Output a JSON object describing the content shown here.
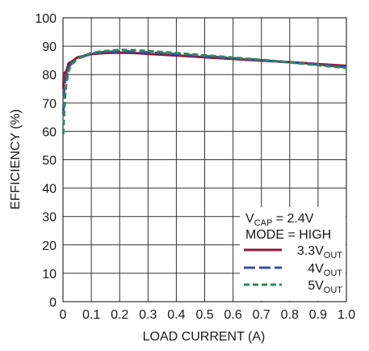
{
  "chart_data": {
    "type": "line",
    "xlabel": "LOAD CURRENT (A)",
    "ylabel": "EFFICIENCY (%)",
    "xlim": [
      0,
      1.0
    ],
    "ylim": [
      0,
      100
    ],
    "x_ticks": [
      "0",
      "0.1",
      "0.2",
      "0.3",
      "0.4",
      "0.5",
      "0.6",
      "0.7",
      "0.8",
      "0.9",
      "1.0"
    ],
    "y_ticks": [
      "0",
      "10",
      "20",
      "30",
      "40",
      "50",
      "60",
      "70",
      "80",
      "90",
      "100"
    ],
    "grid": true,
    "legend": {
      "placement": "bottom-right",
      "conditions": [
        {
          "main": "V",
          "sub": "CAP",
          "rest": " = 2.4V"
        },
        {
          "main": "MODE = HIGH",
          "sub": "",
          "rest": ""
        }
      ]
    },
    "series": [
      {
        "name_main": "3.3V",
        "name_sub": "OUT",
        "color": "#8b1a3a",
        "style": "solid",
        "x": [
          0.001,
          0.003,
          0.005,
          0.008,
          0.012,
          0.02,
          0.03,
          0.05,
          0.07,
          0.1,
          0.15,
          0.2,
          0.25,
          0.3,
          0.4,
          0.5,
          0.6,
          0.7,
          0.8,
          0.9,
          1.0
        ],
        "y": [
          75,
          80,
          80.5,
          80.8,
          81,
          84,
          84.5,
          86,
          86.5,
          87.2,
          87.6,
          87.7,
          87.6,
          87.3,
          86.7,
          86.1,
          85.5,
          84.9,
          84.4,
          83.7,
          83.1
        ]
      },
      {
        "name_main": "4V",
        "name_sub": "OUT",
        "color": "#3b4ea0",
        "style": "dashed",
        "x": [
          0.001,
          0.003,
          0.005,
          0.008,
          0.012,
          0.02,
          0.03,
          0.05,
          0.07,
          0.1,
          0.15,
          0.2,
          0.25,
          0.3,
          0.4,
          0.5,
          0.6,
          0.7,
          0.8,
          0.9,
          1.0
        ],
        "y": [
          66,
          72,
          76,
          78,
          79.5,
          82.5,
          84,
          85.5,
          86.3,
          87.4,
          88,
          88.2,
          88.1,
          87.8,
          87.2,
          86.5,
          85.8,
          85.1,
          84.3,
          83.5,
          82.6
        ]
      },
      {
        "name_main": "5V",
        "name_sub": "OUT",
        "color": "#2e8a57",
        "style": "dashed",
        "x": [
          0.001,
          0.003,
          0.005,
          0.008,
          0.012,
          0.02,
          0.03,
          0.05,
          0.07,
          0.1,
          0.15,
          0.2,
          0.25,
          0.3,
          0.4,
          0.5,
          0.6,
          0.7,
          0.8,
          0.9,
          1.0
        ],
        "y": [
          59,
          64,
          68,
          73,
          77,
          81.5,
          83.5,
          85.5,
          86.5,
          87.6,
          88.3,
          88.7,
          88.6,
          88.3,
          87.6,
          86.8,
          86,
          85.2,
          84.3,
          83.3,
          82.3
        ]
      }
    ]
  }
}
